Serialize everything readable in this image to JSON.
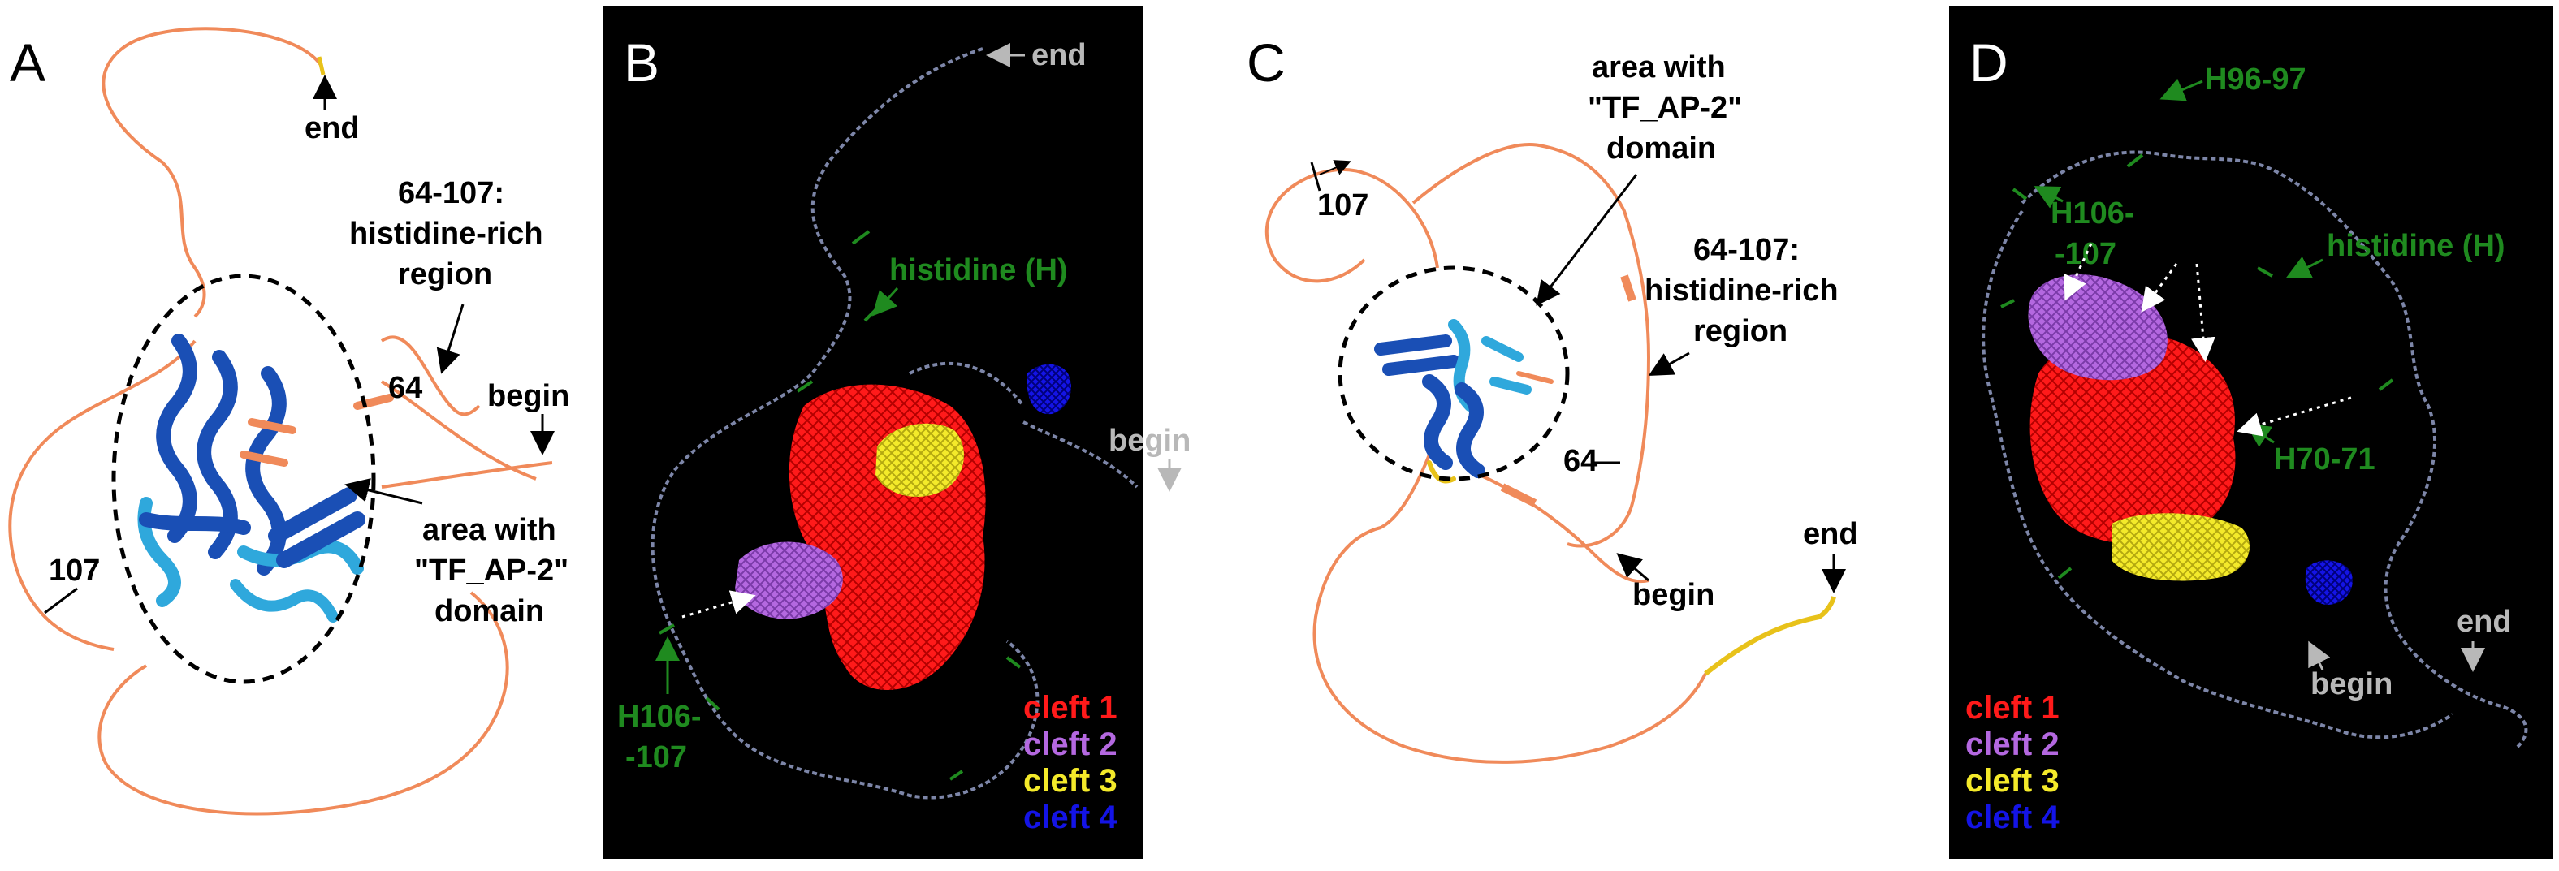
{
  "figure": {
    "panels": [
      {
        "letter": "A",
        "labels": {
          "end": "end",
          "region_line1": "64-107:",
          "region_line2": "histidine-rich",
          "region_line3": "region",
          "pos64": "64",
          "begin": "begin",
          "pos107": "107",
          "domain_line1": "area with",
          "domain_line2": "\"TF_AP-2\"",
          "domain_line3": "domain"
        }
      },
      {
        "letter": "B",
        "labels": {
          "end": "end",
          "histidine": "histidine (H)",
          "begin": "begin",
          "h106_line1": "H106-",
          "h106_line2": "-107"
        },
        "legend": [
          "cleft 1",
          "cleft 2",
          "cleft 3",
          "cleft 4"
        ]
      },
      {
        "letter": "C",
        "labels": {
          "pos107": "107",
          "domain_line1": "area with",
          "domain_line2": "\"TF_AP-2\"",
          "domain_line3": "domain",
          "region_line1": "64-107:",
          "region_line2": "histidine-rich",
          "region_line3": "region",
          "pos64": "64",
          "begin": "begin",
          "end": "end"
        }
      },
      {
        "letter": "D",
        "labels": {
          "h96": "H96-97",
          "h106_line1": "H106-",
          "h106_line2": "-107",
          "histidine": "histidine (H)",
          "h70": "H70-71",
          "end": "end",
          "begin": "begin"
        },
        "legend": [
          "cleft 1",
          "cleft 2",
          "cleft 3",
          "cleft 4"
        ]
      }
    ],
    "colors": {
      "coil": "#f08a5a",
      "helix_dark": "#1a4fb5",
      "helix_light": "#2fa8dc",
      "low_confidence": "#e8c21a",
      "cleft1": "#ff1a1a",
      "cleft2": "#b468e0",
      "cleft3": "#f4ea2a",
      "cleft4": "#1414e6",
      "annotation_green": "#1f8a1f",
      "annotation_gray": "#b8b8b8",
      "panel_background": "#000000"
    }
  }
}
